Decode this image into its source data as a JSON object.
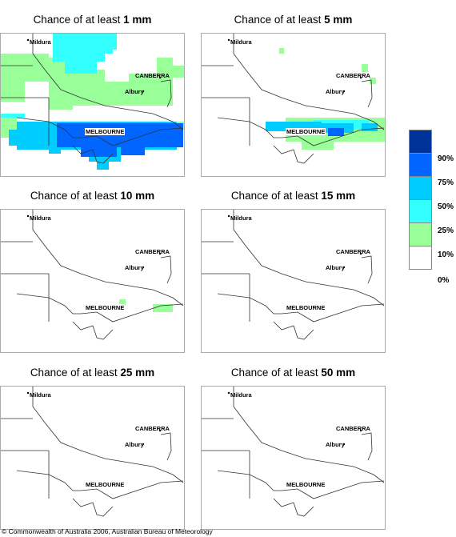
{
  "panels": [
    {
      "title_prefix": "Chance of at least ",
      "amount": "1 mm"
    },
    {
      "title_prefix": "Chance of at least ",
      "amount": "5 mm"
    },
    {
      "title_prefix": "Chance of at least ",
      "amount": "10 mm"
    },
    {
      "title_prefix": "Chance of at least ",
      "amount": "15 mm"
    },
    {
      "title_prefix": "Chance of at least ",
      "amount": "25 mm"
    },
    {
      "title_prefix": "Chance of at least ",
      "amount": "50 mm"
    }
  ],
  "places": {
    "mildura": "Mildura",
    "canberra": "CANBERRA",
    "albury": "Albury",
    "melbourne": "MELBOURNE"
  },
  "legend": {
    "labels": [
      "90%",
      "75%",
      "50%",
      "25%",
      "10%",
      "0%"
    ],
    "colors": [
      "#003399",
      "#0066ff",
      "#00ccff",
      "#33ffff",
      "#99ff99",
      "#ffffff"
    ]
  },
  "copyright": "© Commonwealth of Australia 2006, Australian Bureau of Meteorology"
}
